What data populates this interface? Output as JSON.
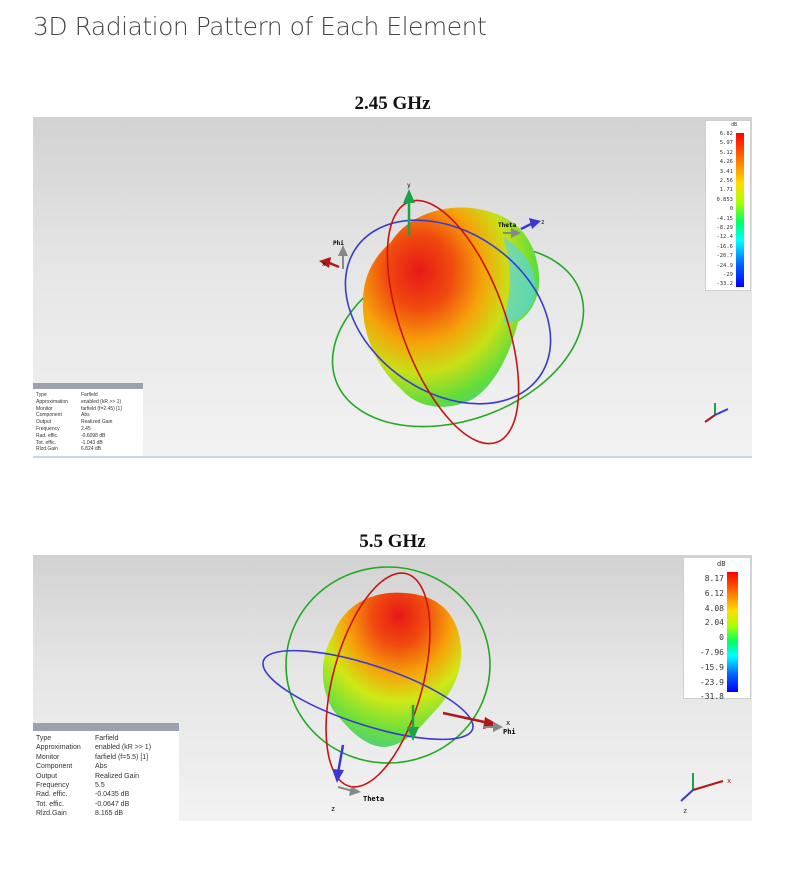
{
  "page_title": "3D Radiation Pattern of Each Element",
  "plots": [
    {
      "caption": "2.45 GHz",
      "scale_unit": "dB",
      "scale_ticks": [
        "6.82",
        "5.97",
        "5.12",
        "4.26",
        "3.41",
        "2.56",
        "1.71",
        "0.853",
        "0",
        "-4.15",
        "-8.29",
        "-12.4",
        "-16.6",
        "-20.7",
        "-24.9",
        "-29",
        "-33.2"
      ],
      "axis_labels": {
        "y": "y",
        "x": "x",
        "z": "z",
        "theta": "Theta",
        "phi": "Phi"
      },
      "info_labels": [
        "Type",
        "Approximation",
        "Monitor",
        "Component",
        "Output",
        "Frequency",
        "Rad. effic.",
        "Tot. effic.",
        "Rlzd.Gain"
      ],
      "info_values": [
        "Farfield",
        "enabled (kR >> 1)",
        "farfield (f=2.45) [1]",
        "Abs",
        "Realized Gain",
        "2.45",
        "-0.6098 dB",
        "-1.043 dB",
        "6.824 dB"
      ]
    },
    {
      "caption": "5.5 GHz",
      "scale_unit": "dB",
      "scale_ticks": [
        "8.17",
        "6.12",
        "4.08",
        "2.04",
        "0",
        "-7.96",
        "-15.9",
        "-23.9",
        "-31.8"
      ],
      "axis_labels": {
        "y": "y",
        "x": "x",
        "z": "z",
        "theta": "Theta",
        "phi": "Phi"
      },
      "info_labels": [
        "Type",
        "Approximation",
        "Monitor",
        "Component",
        "Output",
        "Frequency",
        "Rad. effic.",
        "Tot. effic.",
        "Rlzd.Gain"
      ],
      "info_values": [
        "Farfield",
        "enabled (kR >> 1)",
        "farfield (f=5.5) [1]",
        "Abs",
        "Realized Gain",
        "5.5",
        "-0.0435 dB",
        "-0.0647 dB",
        "8.165 dB"
      ]
    }
  ],
  "colors": {
    "colormap": [
      "#ff0000",
      "#ff6600",
      "#ffcc00",
      "#ccff00",
      "#00ff66",
      "#00ffff",
      "#0066ff",
      "#0000ff"
    ],
    "theta_circle": "#3a3ad0",
    "phi_circle": "#cc1111",
    "equator_circle": "#22aa22"
  }
}
